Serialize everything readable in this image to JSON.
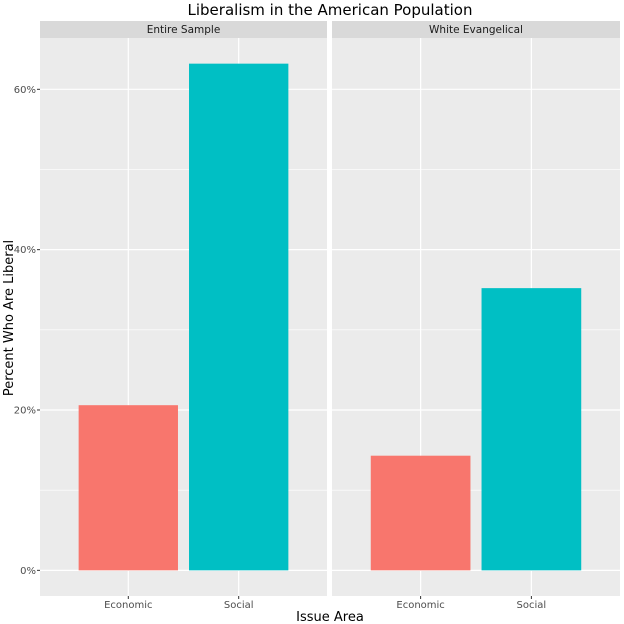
{
  "chart_data": {
    "type": "bar",
    "title": "Liberalism in the American Population",
    "xlabel": "Issue Area",
    "ylabel": "Percent Who Are Liberal",
    "y_tick_labels": [
      "0%",
      "20%",
      "40%",
      "60%"
    ],
    "y_ticks": [
      0,
      20,
      40,
      60
    ],
    "ylim": [
      -3.2,
      66.4
    ],
    "grid": true,
    "categories": [
      "Economic",
      "Social"
    ],
    "colors": {
      "Economic": "#F8766D",
      "Social": "#00BFC4"
    },
    "panel_background": "#EBEBEB",
    "strip_background": "#D9D9D9",
    "facets": [
      {
        "label": "Entire Sample",
        "values": [
          20.6,
          63.2
        ]
      },
      {
        "label": "White Evangelical",
        "values": [
          14.3,
          35.2
        ]
      }
    ]
  }
}
